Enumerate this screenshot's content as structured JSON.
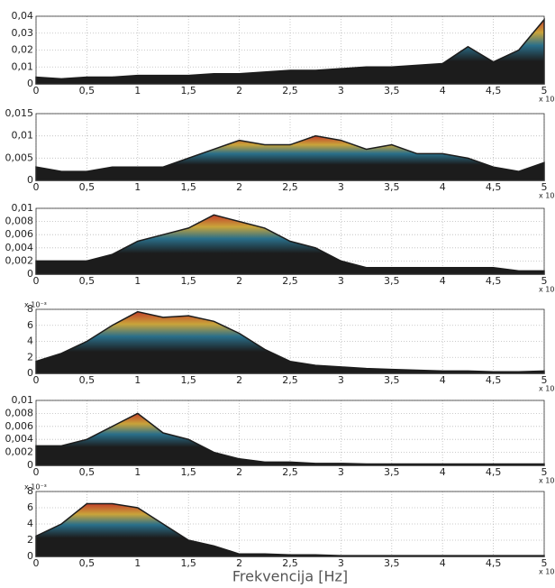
{
  "chart_data": [
    {
      "type": "area",
      "color": "#1c1c1c",
      "grid": true,
      "x": [
        0,
        0.25,
        0.5,
        0.75,
        1,
        1.25,
        1.5,
        1.75,
        2,
        2.25,
        2.5,
        2.75,
        3,
        3.25,
        3.5,
        3.75,
        4,
        4.25,
        4.5,
        4.75,
        5
      ],
      "values": [
        0.004,
        0.003,
        0.004,
        0.004,
        0.005,
        0.005,
        0.005,
        0.006,
        0.006,
        0.007,
        0.008,
        0.008,
        0.009,
        0.01,
        0.01,
        0.011,
        0.012,
        0.022,
        0.013,
        0.02,
        0.038
      ],
      "xlim": [
        0,
        5
      ],
      "ylim": [
        0,
        0.04
      ],
      "xticks": [
        0,
        {
          "value": 0.5,
          "label": "0,5"
        },
        1,
        {
          "value": 1.5,
          "label": "1,5"
        },
        2,
        {
          "value": 2.5,
          "label": "2,5"
        },
        3,
        {
          "value": 3.5,
          "label": "3,5"
        },
        4,
        {
          "value": 4.5,
          "label": "4,5"
        },
        5
      ],
      "yticks": [
        0,
        {
          "value": 0.01,
          "label": "0,01"
        },
        {
          "value": 0.02,
          "label": "0,02"
        },
        {
          "value": 0.03,
          "label": "0,03"
        },
        {
          "value": 0.04,
          "label": "0,04"
        }
      ],
      "x_multiplier": "x 10⁵"
    },
    {
      "type": "area",
      "color": "#1c1c1c",
      "grid": true,
      "x": [
        0,
        0.25,
        0.5,
        0.75,
        1,
        1.25,
        1.5,
        1.75,
        2,
        2.25,
        2.5,
        2.75,
        3,
        3.25,
        3.5,
        3.75,
        4,
        4.25,
        4.5,
        4.75,
        5
      ],
      "values": [
        0.003,
        0.002,
        0.002,
        0.003,
        0.003,
        0.003,
        0.005,
        0.007,
        0.009,
        0.008,
        0.008,
        0.01,
        0.009,
        0.007,
        0.008,
        0.006,
        0.006,
        0.005,
        0.003,
        0.002,
        0.004
      ],
      "xlim": [
        0,
        5
      ],
      "ylim": [
        0,
        0.015
      ],
      "xticks": [
        0,
        {
          "value": 0.5,
          "label": "0,5"
        },
        1,
        {
          "value": 1.5,
          "label": "1,5"
        },
        2,
        {
          "value": 2.5,
          "label": "2,5"
        },
        3,
        {
          "value": 3.5,
          "label": "3,5"
        },
        4,
        {
          "value": 4.5,
          "label": "4,5"
        },
        5
      ],
      "yticks": [
        0,
        {
          "value": 0.005,
          "label": "0,005"
        },
        {
          "value": 0.01,
          "label": "0,01"
        },
        {
          "value": 0.015,
          "label": "0,015"
        }
      ],
      "x_multiplier": "x 10⁵"
    },
    {
      "type": "area",
      "color": "#1c1c1c",
      "grid": true,
      "x": [
        0,
        0.25,
        0.5,
        0.75,
        1,
        1.25,
        1.5,
        1.75,
        2,
        2.25,
        2.5,
        2.75,
        3,
        3.25,
        3.5,
        3.75,
        4,
        4.25,
        4.5,
        4.75,
        5
      ],
      "values": [
        0.002,
        0.002,
        0.002,
        0.003,
        0.005,
        0.006,
        0.007,
        0.009,
        0.008,
        0.007,
        0.005,
        0.004,
        0.002,
        0.001,
        0.001,
        0.001,
        0.001,
        0.001,
        0.001,
        0.0005,
        0.0005
      ],
      "xlim": [
        0,
        5
      ],
      "ylim": [
        0,
        0.01
      ],
      "xticks": [
        0,
        {
          "value": 0.5,
          "label": "0,5"
        },
        1,
        {
          "value": 1.5,
          "label": "1,5"
        },
        2,
        {
          "value": 2.5,
          "label": "2,5"
        },
        3,
        {
          "value": 3.5,
          "label": "3,5"
        },
        4,
        {
          "value": 4.5,
          "label": "4,5"
        },
        5
      ],
      "yticks": [
        0,
        {
          "value": 0.002,
          "label": "0,002"
        },
        {
          "value": 0.004,
          "label": "0,004"
        },
        {
          "value": 0.006,
          "label": "0,006"
        },
        {
          "value": 0.008,
          "label": "0,008"
        },
        {
          "value": 0.01,
          "label": "0,01"
        }
      ],
      "x_multiplier": "x 10⁵"
    },
    {
      "type": "area",
      "color": "#1c1c1c",
      "grid": true,
      "x": [
        0,
        0.25,
        0.5,
        0.75,
        1,
        1.25,
        1.5,
        1.75,
        2,
        2.25,
        2.5,
        2.75,
        3,
        3.25,
        3.5,
        3.75,
        4,
        4.25,
        4.5,
        4.75,
        5
      ],
      "values": [
        1.5,
        2.5,
        4,
        6,
        7.7,
        7,
        7.2,
        6.5,
        5,
        3,
        1.5,
        1,
        0.8,
        0.6,
        0.5,
        0.4,
        0.3,
        0.3,
        0.2,
        0.2,
        0.3
      ],
      "xlim": [
        0,
        5
      ],
      "ylim": [
        0,
        8
      ],
      "xticks": [
        0,
        {
          "value": 0.5,
          "label": "0,5"
        },
        1,
        {
          "value": 1.5,
          "label": "1,5"
        },
        2,
        {
          "value": 2.5,
          "label": "2,5"
        },
        3,
        {
          "value": 3.5,
          "label": "3,5"
        },
        4,
        {
          "value": 4.5,
          "label": "4,5"
        },
        5
      ],
      "yticks": [
        0,
        2,
        4,
        6,
        8
      ],
      "x_multiplier": "x 10⁵",
      "y_multiplier": "x 10⁻³"
    },
    {
      "type": "area",
      "color": "#1c1c1c",
      "grid": true,
      "x": [
        0,
        0.25,
        0.5,
        0.75,
        1,
        1.25,
        1.5,
        1.75,
        2,
        2.25,
        2.5,
        2.75,
        3,
        3.25,
        3.5,
        3.75,
        4,
        4.25,
        4.5,
        4.75,
        5
      ],
      "values": [
        0.003,
        0.003,
        0.004,
        0.006,
        0.008,
        0.005,
        0.004,
        0.002,
        0.001,
        0.0005,
        0.0005,
        0.0003,
        0.0003,
        0.0002,
        0.0002,
        0.0002,
        0.0002,
        0.0002,
        0.0002,
        0.0002,
        0.0002
      ],
      "xlim": [
        0,
        5
      ],
      "ylim": [
        0,
        0.01
      ],
      "xticks": [
        0,
        {
          "value": 0.5,
          "label": "0,5"
        },
        1,
        {
          "value": 1.5,
          "label": "1,5"
        },
        2,
        {
          "value": 2.5,
          "label": "2,5"
        },
        3,
        {
          "value": 3.5,
          "label": "3,5"
        },
        4,
        {
          "value": 4.5,
          "label": "4,5"
        },
        5
      ],
      "yticks": [
        0,
        {
          "value": 0.002,
          "label": "0,002"
        },
        {
          "value": 0.004,
          "label": "0,004"
        },
        {
          "value": 0.006,
          "label": "0,006"
        },
        {
          "value": 0.008,
          "label": "0,008"
        },
        {
          "value": 0.01,
          "label": "0,01"
        }
      ],
      "x_multiplier": "x 10⁵"
    },
    {
      "type": "area",
      "color": "#1c1c1c",
      "grid": true,
      "x": [
        0,
        0.25,
        0.5,
        0.75,
        1,
        1.25,
        1.5,
        1.75,
        2,
        2.25,
        2.5,
        2.75,
        3,
        3.25,
        3.5,
        3.75,
        4,
        4.25,
        4.5,
        4.75,
        5
      ],
      "values": [
        2.5,
        4,
        6.5,
        6.5,
        6,
        4,
        2,
        1.3,
        0.3,
        0.3,
        0.2,
        0.2,
        0.1,
        0.1,
        0.1,
        0.1,
        0.1,
        0.1,
        0.1,
        0.1,
        0.1
      ],
      "xlim": [
        0,
        5
      ],
      "ylim": [
        0,
        8
      ],
      "xticks": [
        0,
        {
          "value": 0.5,
          "label": "0,5"
        },
        1,
        {
          "value": 1.5,
          "label": "1,5"
        },
        2,
        {
          "value": 2.5,
          "label": "2,5"
        },
        3,
        {
          "value": 3.5,
          "label": "3,5"
        },
        4,
        {
          "value": 4.5,
          "label": "4,5"
        },
        5
      ],
      "yticks": [
        0,
        2,
        4,
        6,
        8
      ],
      "x_multiplier": "x 10⁵",
      "y_multiplier": "x 10⁻³",
      "x_label": "Frekvencija [Hz]"
    }
  ]
}
